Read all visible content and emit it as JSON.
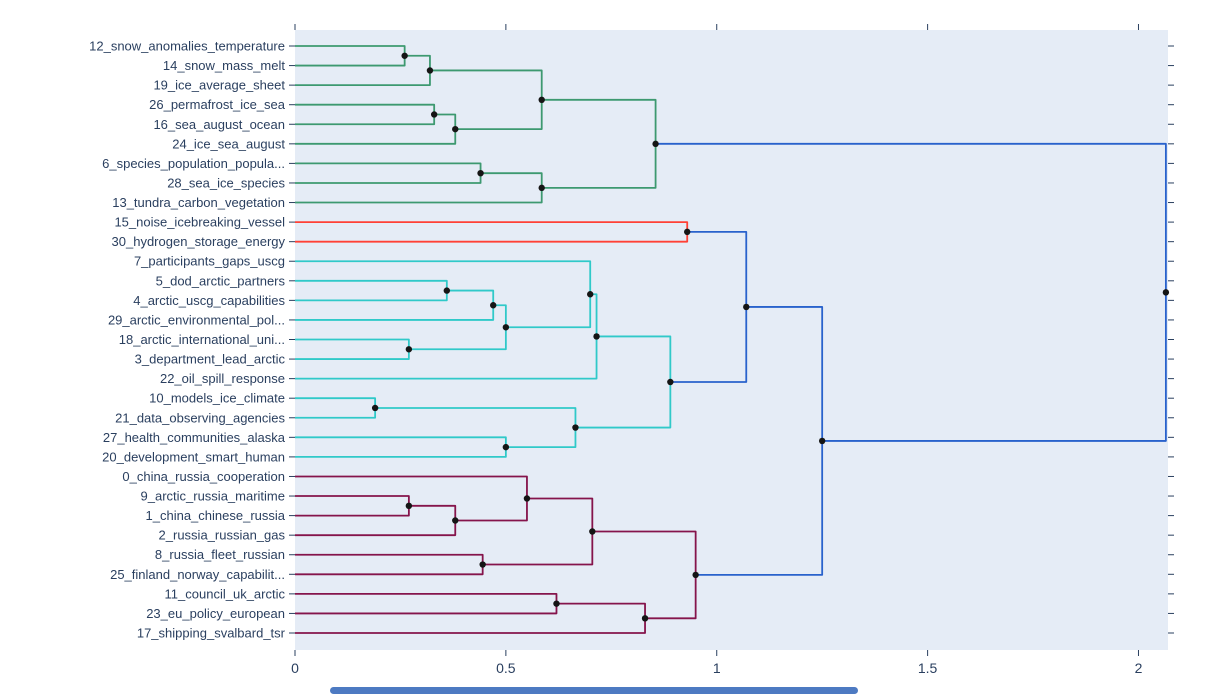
{
  "chart_data": {
    "type": "dendrogram",
    "title": "",
    "orientation": "left-labels",
    "grid": false,
    "legend": false,
    "x_axis": {
      "range": [
        0,
        2.07
      ],
      "ticks": [
        0,
        0.5,
        1,
        1.5,
        2
      ],
      "tick_labels": [
        "0",
        "0.5",
        "1",
        "1.5",
        "2"
      ]
    },
    "leaves": [
      "12_snow_anomalies_temperature",
      "14_snow_mass_melt",
      "19_ice_average_sheet",
      "26_permafrost_ice_sea",
      "16_sea_august_ocean",
      "24_ice_sea_august",
      "6_species_population_popula...",
      "28_sea_ice_species",
      "13_tundra_carbon_vegetation",
      "15_noise_icebreaking_vessel",
      "30_hydrogen_storage_energy",
      "7_participants_gaps_uscg",
      "5_dod_arctic_partners",
      "4_arctic_uscg_capabilities",
      "29_arctic_environmental_pol...",
      "18_arctic_international_uni...",
      "3_department_lead_arctic",
      "22_oil_spill_response",
      "10_models_ice_climate",
      "21_data_observing_agencies",
      "27_health_communities_alaska",
      "20_development_smart_human",
      "0_china_russia_cooperation",
      "9_arctic_russia_maritime",
      "1_china_chinese_russia",
      "2_russia_russian_gas",
      "8_russia_fleet_russian",
      "25_finland_norway_capabilit...",
      "11_council_uk_arctic",
      "23_eu_policy_european",
      "17_shipping_svalbard_tsr"
    ],
    "merges": [
      {
        "a": "L0",
        "b": "L1",
        "distance": 0.26,
        "color": "green"
      },
      {
        "a": "M0",
        "b": "L2",
        "distance": 0.32,
        "color": "green"
      },
      {
        "a": "L3",
        "b": "L4",
        "distance": 0.33,
        "color": "green"
      },
      {
        "a": "M2",
        "b": "L5",
        "distance": 0.38,
        "color": "green"
      },
      {
        "a": "M1",
        "b": "M3",
        "distance": 0.585,
        "color": "green"
      },
      {
        "a": "L6",
        "b": "L7",
        "distance": 0.44,
        "color": "green"
      },
      {
        "a": "M5",
        "b": "L8",
        "distance": 0.585,
        "color": "green"
      },
      {
        "a": "M4",
        "b": "M6",
        "distance": 0.855,
        "color": "green"
      },
      {
        "a": "L9",
        "b": "L10",
        "distance": 0.93,
        "color": "red"
      },
      {
        "a": "L12",
        "b": "L13",
        "distance": 0.36,
        "color": "cyan"
      },
      {
        "a": "M9",
        "b": "L14",
        "distance": 0.47,
        "color": "cyan"
      },
      {
        "a": "L15",
        "b": "L16",
        "distance": 0.27,
        "color": "cyan"
      },
      {
        "a": "M10",
        "b": "M11",
        "distance": 0.5,
        "color": "cyan"
      },
      {
        "a": "L11",
        "b": "M12",
        "distance": 0.7,
        "color": "cyan"
      },
      {
        "a": "M13",
        "b": "L17",
        "distance": 0.715,
        "color": "cyan"
      },
      {
        "a": "L18",
        "b": "L19",
        "distance": 0.19,
        "color": "cyan"
      },
      {
        "a": "L20",
        "b": "L21",
        "distance": 0.5,
        "color": "cyan"
      },
      {
        "a": "M15",
        "b": "M16",
        "distance": 0.665,
        "color": "cyan"
      },
      {
        "a": "M14",
        "b": "M17",
        "distance": 0.89,
        "color": "cyan"
      },
      {
        "a": "L23",
        "b": "L24",
        "distance": 0.27,
        "color": "maroon"
      },
      {
        "a": "M19",
        "b": "L25",
        "distance": 0.38,
        "color": "maroon"
      },
      {
        "a": "L22",
        "b": "M20",
        "distance": 0.55,
        "color": "maroon"
      },
      {
        "a": "L26",
        "b": "L27",
        "distance": 0.445,
        "color": "maroon"
      },
      {
        "a": "M21",
        "b": "M22",
        "distance": 0.705,
        "color": "maroon"
      },
      {
        "a": "L28",
        "b": "L29",
        "distance": 0.62,
        "color": "maroon"
      },
      {
        "a": "M24",
        "b": "L30",
        "distance": 0.83,
        "color": "maroon"
      },
      {
        "a": "M23",
        "b": "M25",
        "distance": 0.95,
        "color": "maroon"
      },
      {
        "a": "M8",
        "b": "M18",
        "distance": 1.07,
        "color": "blue"
      },
      {
        "a": "M27",
        "b": "M26",
        "distance": 1.25,
        "color": "blue"
      },
      {
        "a": "M7",
        "b": "M28",
        "distance": 2.065,
        "color": "blue"
      }
    ],
    "colors": {
      "green": "#3D9970",
      "red": "#FF4136",
      "cyan": "#30C9C9",
      "maroon": "#85144B",
      "blue": "#2962CC"
    },
    "plot_background": "#E5ECF6",
    "tick_color": "#2A3F5F",
    "label_color": "#2A3F5F",
    "dot_color": "#151515"
  },
  "ui": {
    "scrollbar_color": "#4D7AC2"
  }
}
